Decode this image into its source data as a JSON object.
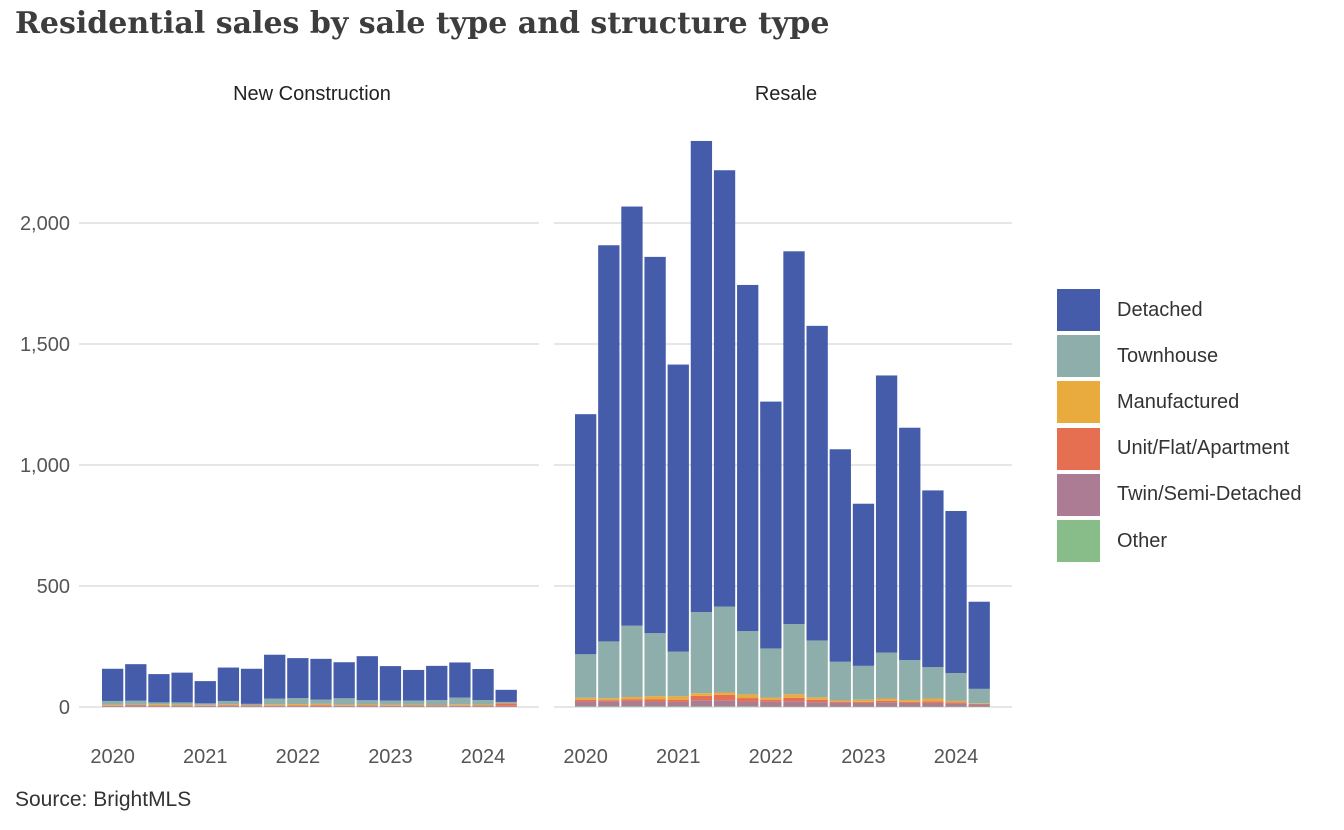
{
  "title": "Residential sales by sale type and structure type",
  "source": "Source: BrightMLS",
  "chart_data": {
    "type": "bar",
    "stacked": true,
    "facets": [
      "New Construction",
      "Resale"
    ],
    "x": [
      "2020Q1",
      "2020Q2",
      "2020Q3",
      "2020Q4",
      "2021Q1",
      "2021Q2",
      "2021Q3",
      "2021Q4",
      "2022Q1",
      "2022Q2",
      "2022Q3",
      "2022Q4",
      "2023Q1",
      "2023Q2",
      "2023Q3",
      "2023Q4",
      "2024Q1",
      "2024Q2"
    ],
    "x_tick_labels": [
      "2020",
      "2021",
      "2022",
      "2023",
      "2024"
    ],
    "y_tick_labels": [
      "0",
      "500",
      "1,000",
      "1,500",
      "2,000"
    ],
    "ylim": [
      0,
      2400
    ],
    "grid": true,
    "legend_position": "right",
    "series_colors": {
      "Detached": "#445ca9",
      "Townhouse": "#8daeaa",
      "Manufactured": "#e9ab3e",
      "Unit/Flat/Apartment": "#e66f52",
      "Twin/Semi-Detached": "#ac7c94",
      "Other": "#88bd89"
    },
    "legend": [
      "Detached",
      "Townhouse",
      "Manufactured",
      "Unit/Flat/Apartment",
      "Twin/Semi-Detached",
      "Other"
    ],
    "panels": [
      {
        "facet": "New Construction",
        "series": [
          {
            "name": "Other",
            "values": [
              1,
              1,
              1,
              1,
              1,
              1,
              1,
              1,
              1,
              1,
              1,
              1,
              1,
              1,
              1,
              1,
              1,
              1
            ]
          },
          {
            "name": "Twin/Semi-Detached",
            "values": [
              4,
              5,
              3,
              3,
              4,
              4,
              3,
              4,
              3,
              4,
              4,
              3,
              4,
              3,
              3,
              4,
              3,
              4
            ]
          },
          {
            "name": "Unit/Flat/Apartment",
            "values": [
              2,
              2,
              2,
              2,
              2,
              3,
              2,
              2,
              3,
              3,
              2,
              2,
              2,
              2,
              2,
              2,
              3,
              10
            ]
          },
          {
            "name": "Manufactured",
            "values": [
              3,
              2,
              5,
              3,
              2,
              3,
              2,
              4,
              5,
              5,
              3,
              4,
              3,
              3,
              2,
              4,
              3,
              1
            ]
          },
          {
            "name": "Townhouse",
            "values": [
              15,
              16,
              8,
              10,
              6,
              14,
              5,
              24,
              25,
              18,
              26,
              18,
              17,
              18,
              21,
              28,
              19,
              5
            ]
          },
          {
            "name": "Detached",
            "values": [
              133,
              151,
              117,
              123,
              92,
              138,
              145,
              181,
              165,
              168,
              149,
              182,
              142,
              126,
              141,
              145,
              128,
              50
            ]
          }
        ]
      },
      {
        "facet": "Resale",
        "series": [
          {
            "name": "Other",
            "values": [
              3,
              3,
              3,
              3,
              3,
              3,
              3,
              3,
              2,
              2,
              2,
              2,
              2,
              2,
              2,
              2,
              2,
              2
            ]
          },
          {
            "name": "Twin/Semi-Detached",
            "values": [
              20,
              20,
              22,
              20,
              18,
              25,
              25,
              20,
              20,
              22,
              18,
              15,
              15,
              18,
              15,
              15,
              12,
              8
            ]
          },
          {
            "name": "Unit/Flat/Apartment",
            "values": [
              7,
              5,
              6,
              8,
              8,
              18,
              22,
              14,
              8,
              14,
              10,
              5,
              4,
              5,
              4,
              7,
              5,
              3
            ]
          },
          {
            "name": "Manufactured",
            "values": [
              8,
              8,
              10,
              14,
              15,
              11,
              10,
              15,
              9,
              15,
              10,
              5,
              9,
              10,
              8,
              11,
              6,
              2
            ]
          },
          {
            "name": "Townhouse",
            "values": [
              180,
              235,
              295,
              260,
              185,
              335,
              355,
              262,
              203,
              290,
              235,
              160,
              140,
              190,
              165,
              130,
              115,
              60
            ]
          },
          {
            "name": "Detached",
            "values": [
              992,
              1637,
              1732,
              1555,
              1186,
              1947,
              1803,
              1430,
              1020,
              1540,
              1300,
              878,
              670,
              1145,
              960,
              730,
              670,
              360
            ]
          }
        ]
      }
    ]
  }
}
